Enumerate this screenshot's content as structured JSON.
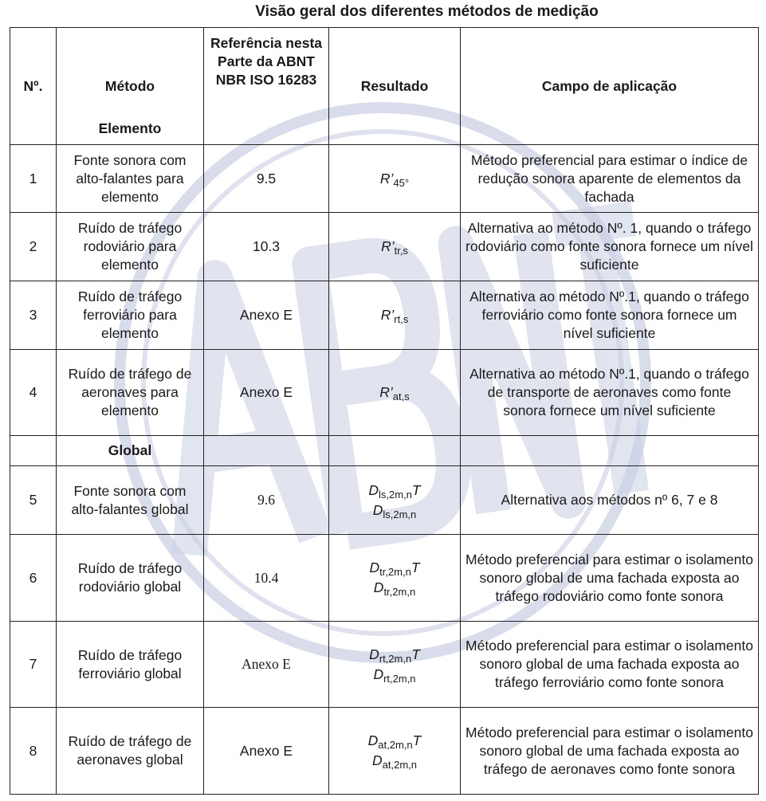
{
  "title": "Visão geral dos diferentes métodos de medição",
  "watermark": "ABNT",
  "watermark_color": "#c9cfe3",
  "headers": {
    "num": "Nº.",
    "method": "Método",
    "ref": "Referência nesta Parte da ABNT NBR ISO 16283",
    "result": "Resultado",
    "field": "Campo de aplicação"
  },
  "sections": {
    "element": "Elemento",
    "global": "Global"
  },
  "rows": [
    {
      "num": "1",
      "method": "Fonte sonora com alto-falantes para elemento",
      "ref": "9.5",
      "result": [
        {
          "sym": "R’",
          "sub": "45°"
        }
      ],
      "field": "Método preferencial para estimar o índice de redução sonora aparente de elementos da fachada"
    },
    {
      "num": "2",
      "method": "Ruído de tráfego rodoviário para elemento",
      "ref": "10.3",
      "result": [
        {
          "sym": "R’",
          "sub": "tr,s"
        }
      ],
      "field": "Alternativa ao método Nº. 1, quando o tráfego rodoviário como fonte sonora fornece um nível suficiente"
    },
    {
      "num": "3",
      "method": "Ruído de tráfego ferroviário para elemento",
      "ref": "Anexo E",
      "result": [
        {
          "sym": "R’",
          "sub": "rt,s"
        }
      ],
      "field": "Alternativa ao método Nº.1, quando o tráfego ferroviário como fonte sonora fornece um nível suficiente"
    },
    {
      "num": "4",
      "method": "Ruído de tráfego de aeronaves para elemento",
      "ref": "Anexo E",
      "result": [
        {
          "sym": "R’",
          "sub": "at,s"
        }
      ],
      "field": "Alternativa ao método Nº.1, quando o tráfego de transporte de aeronaves como fonte sonora fornece um nível suficiente"
    },
    {
      "num": "5",
      "method": "Fonte sonora com alto-falantes global",
      "ref": "9.6",
      "result": [
        {
          "sym": "D",
          "sub": "ls,2m,n",
          "tail": "T"
        },
        {
          "sym": "D",
          "sub": "ls,2m,n"
        }
      ],
      "field": "Alternativa aos métodos nº 6, 7 e 8"
    },
    {
      "num": "6",
      "method": "Ruído de tráfego rodoviário global",
      "ref": "10.4",
      "result": [
        {
          "sym": "D",
          "sub": "tr,2m,n",
          "tail": "T"
        },
        {
          "sym": "D",
          "sub": "tr,2m,n"
        }
      ],
      "field": "Método preferencial para estimar o isolamento sonoro global de uma fachada exposta ao tráfego rodoviário como fonte sonora"
    },
    {
      "num": "7",
      "method": "Ruído de tráfego ferroviário global",
      "ref": "Anexo E",
      "result": [
        {
          "sym": "D",
          "sub": "rt,2m,n",
          "tail": "T"
        },
        {
          "sym": "D",
          "sub": "rt,2m,n"
        }
      ],
      "field": "Método preferencial para estimar o isolamento sonoro global de uma fachada exposta ao tráfego ferroviário como fonte sonora"
    },
    {
      "num": "8",
      "method": "Ruído de tráfego de aeronaves global",
      "ref": "Anexo E",
      "result": [
        {
          "sym": "D",
          "sub": "at,2m,n",
          "tail": "T"
        },
        {
          "sym": "D",
          "sub": "at,2m,n"
        }
      ],
      "field": "Método preferencial para estimar o isolamento sonoro global de uma fachada exposta ao tráfego de aeronaves como fonte sonora"
    }
  ]
}
